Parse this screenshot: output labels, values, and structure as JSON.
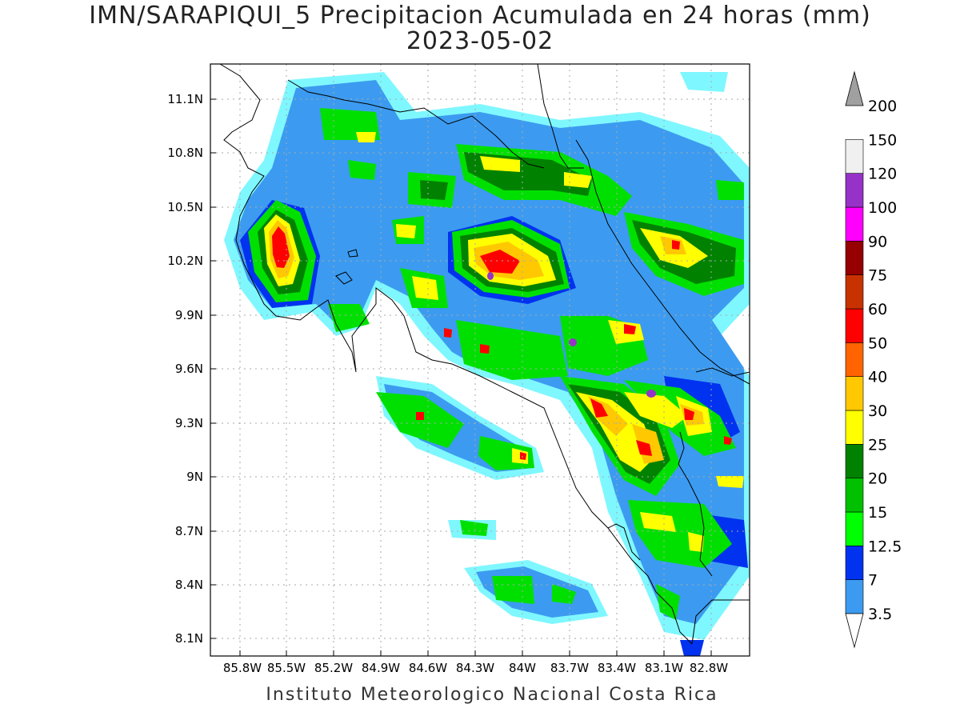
{
  "title": "IMN/SARAPIQUI_5 Precipitacion Acumulada en 24 horas (mm)",
  "date": "2023-05-02",
  "footer": "Instituto Meteorologico Nacional Costa Rica",
  "map": {
    "lon_labels": [
      "85.8W",
      "85.5W",
      "85.2W",
      "84.9W",
      "84.6W",
      "84.3W",
      "84W",
      "83.7W",
      "83.4W",
      "83.1W",
      "82.8W"
    ],
    "lat_labels": [
      "11.1N",
      "10.8N",
      "10.5N",
      "10.2N",
      "9.9N",
      "9.6N",
      "9.3N",
      "9N",
      "8.7N",
      "8.4N",
      "8.1N"
    ]
  },
  "legend": {
    "levels": [
      "3.5",
      "7",
      "12.5",
      "15",
      "20",
      "25",
      "30",
      "40",
      "50",
      "60",
      "75",
      "90",
      "100",
      "120",
      "150",
      "200"
    ],
    "colors": [
      "#7ff7ff",
      "#3c9bf0",
      "#0032f0",
      "#00ff00",
      "#00c000",
      "#008200",
      "#ffff00",
      "#ffc800",
      "#ff6400",
      "#ff0000",
      "#c83200",
      "#960000",
      "#ff00ff",
      "#9632c8",
      "#f0f0f0",
      "#a0a0a0"
    ]
  }
}
